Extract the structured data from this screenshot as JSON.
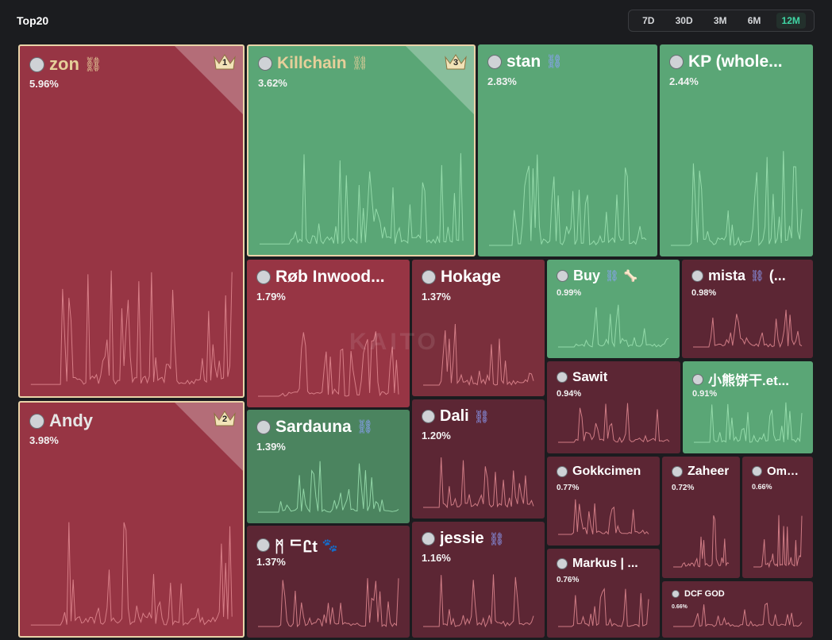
{
  "header": {
    "title": "Top20"
  },
  "periods": [
    {
      "label": "7D",
      "active": false
    },
    {
      "label": "30D",
      "active": false
    },
    {
      "label": "3M",
      "active": false
    },
    {
      "label": "6M",
      "active": false
    },
    {
      "label": "12M",
      "active": true
    }
  ],
  "watermark": "KAITO",
  "colors": {
    "red_bright": "#973544",
    "red_mid": "#7a2f3c",
    "red_dark": "#5c2634",
    "green_bright": "#5aa676",
    "green_mid": "#4b845f",
    "accent": "#3fd5a4",
    "top_border": "#e9d3a8"
  },
  "tiles": [
    {
      "name": "zon",
      "pct": "5.96%",
      "rank": "1",
      "link_icon": "gold",
      "color": "#973544",
      "name_color": "#e6cf9a"
    },
    {
      "name": "Killchain",
      "pct": "3.62%",
      "rank": "3",
      "link_icon": "gold",
      "color": "#5aa676",
      "name_color": "#e6cf9a"
    },
    {
      "name": "stan",
      "pct": "2.83%",
      "link_icon": "blue",
      "color": "#5aa676"
    },
    {
      "name": "KP (whole...",
      "pct": "2.44%",
      "color": "#5aa676"
    },
    {
      "name": "Andy",
      "pct": "3.98%",
      "rank": "2",
      "color": "#973544",
      "name_color": "#e6e6e6"
    },
    {
      "name": "Røb Inwood...",
      "pct": "1.79%",
      "color": "#973544"
    },
    {
      "name": "Hokage",
      "pct": "1.37%",
      "color": "#7a2f3c"
    },
    {
      "name": "Buy",
      "pct": "0.99%",
      "link_icon": "blue",
      "extra_icon": "bone",
      "color": "#5aa676"
    },
    {
      "name": "mista",
      "pct": "0.98%",
      "link_icon": "blue",
      "suffix": "(...",
      "color": "#5c2634"
    },
    {
      "name": "Sawit",
      "pct": "0.94%",
      "color": "#5c2634"
    },
    {
      "name": "小熊饼干.et...",
      "pct": "0.91%",
      "color": "#5aa676"
    },
    {
      "name": "Sardauna",
      "pct": "1.39%",
      "link_icon": "blue",
      "color": "#4b845f"
    },
    {
      "name": "Dali",
      "pct": "1.20%",
      "link_icon": "blue",
      "color": "#5c2634"
    },
    {
      "name": "Gokkcimen",
      "pct": "0.77%",
      "color": "#5c2634"
    },
    {
      "name": "Zaheer",
      "pct": "0.72%",
      "color": "#5c2634"
    },
    {
      "name": "Omni...",
      "pct": "0.66%",
      "color": "#5c2634"
    },
    {
      "name": "ᛗ ᄃᏝt",
      "pct": "1.37%",
      "extra_icon": "paw",
      "color": "#5c2634"
    },
    {
      "name": "jessie",
      "pct": "1.16%",
      "link_icon": "blue",
      "color": "#5c2634"
    },
    {
      "name": "Markus | ...",
      "pct": "0.76%",
      "color": "#5c2634"
    },
    {
      "name": "DCF GOD",
      "pct": "0.66%",
      "color": "#5c2634"
    }
  ]
}
